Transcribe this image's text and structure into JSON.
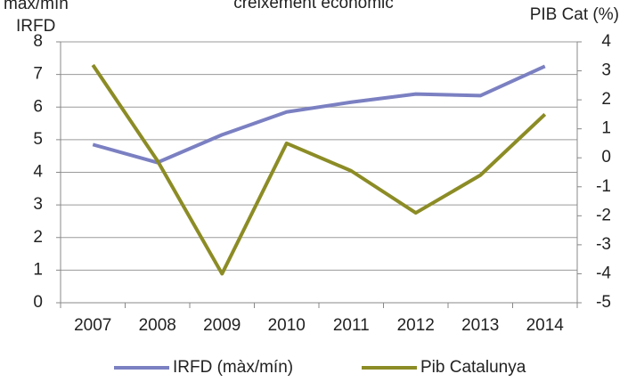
{
  "chart_data": {
    "type": "line",
    "title": "creixement econòmic",
    "ylabel": [
      "màx/mín",
      "IRFD"
    ],
    "y2label": "PIB Cat (%)",
    "categories": [
      "2007",
      "2008",
      "2009",
      "2010",
      "2011",
      "2012",
      "2013",
      "2014"
    ],
    "series": [
      {
        "name": "IRFD (màx/mín)",
        "color": "#7b80c2",
        "values": [
          4.85,
          4.3,
          5.15,
          5.85,
          6.15,
          6.4,
          6.35,
          7.25
        ]
      },
      {
        "name": "Pib Catalunya",
        "color": "#8c8c26",
        "axis": "y2",
        "values": [
          3.2,
          -0.1,
          -4.0,
          0.5,
          -0.45,
          -1.9,
          -0.6,
          1.5
        ]
      }
    ],
    "ylim": [
      0,
      8
    ],
    "yticks": [
      0,
      1,
      2,
      3,
      4,
      5,
      6,
      7,
      8
    ],
    "y2lim": [
      -5,
      4
    ],
    "y2ticks": [
      -5,
      -4,
      -3,
      -2,
      -1,
      0,
      1,
      2,
      3,
      4
    ],
    "grid": true,
    "legend": "bottom"
  }
}
